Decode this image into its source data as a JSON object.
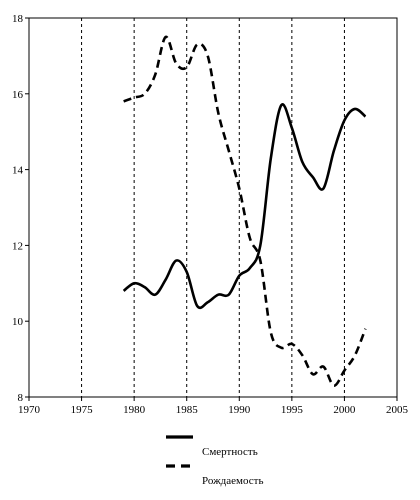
{
  "chart_data": {
    "type": "line",
    "xlim": [
      1970,
      2005
    ],
    "ylim": [
      8,
      18
    ],
    "x_ticks": [
      1970,
      1975,
      1980,
      1985,
      1990,
      1995,
      2000,
      2005
    ],
    "y_ticks": [
      8,
      10,
      12,
      14,
      16,
      18
    ],
    "vertical_grid_at": [
      1975,
      1980,
      1985,
      1990,
      1995,
      2000
    ],
    "grid": "vertical dashed",
    "legend_placement": "bottom",
    "series": [
      {
        "name": "Смертность",
        "style": "solid",
        "color": "#000000",
        "points": [
          [
            1979,
            10.8
          ],
          [
            1980,
            11.0
          ],
          [
            1981,
            10.9
          ],
          [
            1982,
            10.7
          ],
          [
            1983,
            11.1
          ],
          [
            1984,
            11.6
          ],
          [
            1985,
            11.3
          ],
          [
            1986,
            10.4
          ],
          [
            1987,
            10.5
          ],
          [
            1988,
            10.7
          ],
          [
            1989,
            10.7
          ],
          [
            1990,
            11.2
          ],
          [
            1991,
            11.4
          ],
          [
            1992,
            12.0
          ],
          [
            1993,
            14.3
          ],
          [
            1994,
            15.7
          ],
          [
            1995,
            15.1
          ],
          [
            1996,
            14.2
          ],
          [
            1997,
            13.8
          ],
          [
            1998,
            13.5
          ],
          [
            1999,
            14.5
          ],
          [
            2000,
            15.3
          ],
          [
            2001,
            15.6
          ],
          [
            2002,
            15.4
          ]
        ]
      },
      {
        "name": "Рождаемость",
        "style": "dashed",
        "color": "#000000",
        "points": [
          [
            1979,
            15.8
          ],
          [
            1980,
            15.9
          ],
          [
            1981,
            16.0
          ],
          [
            1982,
            16.5
          ],
          [
            1983,
            17.5
          ],
          [
            1984,
            16.8
          ],
          [
            1985,
            16.7
          ],
          [
            1986,
            17.3
          ],
          [
            1987,
            17.0
          ],
          [
            1988,
            15.5
          ],
          [
            1989,
            14.5
          ],
          [
            1990,
            13.5
          ],
          [
            1991,
            12.2
          ],
          [
            1992,
            11.6
          ],
          [
            1993,
            9.7
          ],
          [
            1994,
            9.3
          ],
          [
            1995,
            9.4
          ],
          [
            1996,
            9.1
          ],
          [
            1997,
            8.6
          ],
          [
            1998,
            8.8
          ],
          [
            1999,
            8.3
          ],
          [
            2000,
            8.7
          ],
          [
            2001,
            9.1
          ],
          [
            2002,
            9.8
          ]
        ]
      }
    ]
  }
}
